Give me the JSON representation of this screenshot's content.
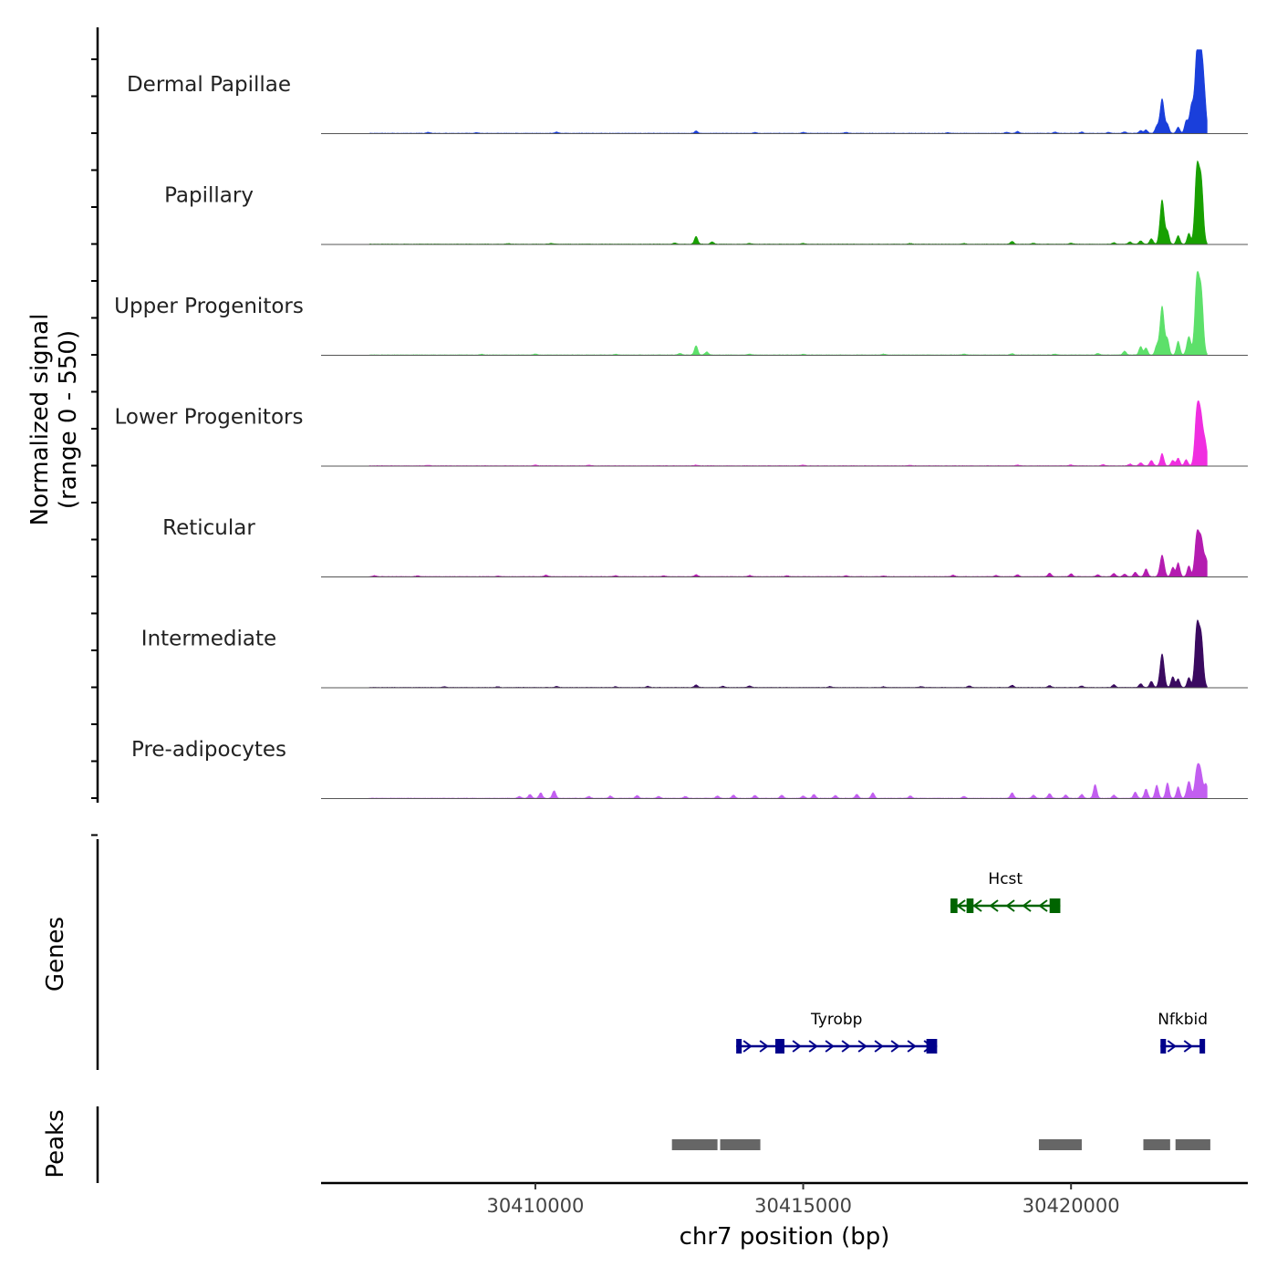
{
  "chart_data": {
    "type": "area",
    "title": "",
    "ylabel_line1": "Normalized signal",
    "ylabel_line2": "(range 0 - 550)",
    "y_range": [
      0,
      550
    ],
    "xlabel": "chr7 position (bp)",
    "x_range": [
      30406000,
      30423300
    ],
    "x_ticks": [
      30410000,
      30415000,
      30420000
    ],
    "x_tick_labels": [
      "30410000",
      "30415000",
      "30420000"
    ],
    "genes_label": "Genes",
    "peaks_label": "Peaks",
    "tracks": [
      {
        "name": "Dermal Papillae",
        "color": "#1a3fdb",
        "peaks": [
          [
            30408000,
            6
          ],
          [
            30408900,
            5
          ],
          [
            30410400,
            8
          ],
          [
            30413000,
            15
          ],
          [
            30414100,
            5
          ],
          [
            30415000,
            6
          ],
          [
            30415800,
            6
          ],
          [
            30417700,
            4
          ],
          [
            30418800,
            7
          ],
          [
            30419000,
            12
          ],
          [
            30419700,
            8
          ],
          [
            30420200,
            8
          ],
          [
            30420700,
            6
          ],
          [
            30421000,
            10
          ],
          [
            30421300,
            18
          ],
          [
            30421400,
            22
          ],
          [
            30421600,
            45
          ],
          [
            30421700,
            225
          ],
          [
            30421800,
            55
          ],
          [
            30422000,
            40
          ],
          [
            30422150,
            80
          ],
          [
            30422250,
            180
          ],
          [
            30422350,
            490
          ],
          [
            30422420,
            410
          ],
          [
            30422480,
            260
          ]
        ]
      },
      {
        "name": "Papillary",
        "color": "#18a000",
        "peaks": [
          [
            30409500,
            4
          ],
          [
            30410300,
            5
          ],
          [
            30412600,
            8
          ],
          [
            30413000,
            50
          ],
          [
            30413300,
            15
          ],
          [
            30414000,
            5
          ],
          [
            30415000,
            5
          ],
          [
            30417000,
            5
          ],
          [
            30418000,
            4
          ],
          [
            30418900,
            18
          ],
          [
            30419300,
            6
          ],
          [
            30420000,
            6
          ],
          [
            30420800,
            10
          ],
          [
            30421100,
            15
          ],
          [
            30421300,
            22
          ],
          [
            30421500,
            35
          ],
          [
            30421700,
            290
          ],
          [
            30421800,
            80
          ],
          [
            30422000,
            55
          ],
          [
            30422200,
            70
          ],
          [
            30422350,
            480
          ],
          [
            30422430,
            400
          ]
        ]
      },
      {
        "name": "Upper Progenitors",
        "color": "#5de06a",
        "peaks": [
          [
            30409000,
            5
          ],
          [
            30410000,
            6
          ],
          [
            30411500,
            5
          ],
          [
            30412700,
            10
          ],
          [
            30413000,
            60
          ],
          [
            30413200,
            20
          ],
          [
            30414000,
            6
          ],
          [
            30415000,
            5
          ],
          [
            30416500,
            6
          ],
          [
            30418000,
            6
          ],
          [
            30418900,
            8
          ],
          [
            30419700,
            6
          ],
          [
            30420500,
            10
          ],
          [
            30421000,
            25
          ],
          [
            30421300,
            55
          ],
          [
            30421400,
            45
          ],
          [
            30421600,
            60
          ],
          [
            30421700,
            320
          ],
          [
            30421800,
            100
          ],
          [
            30422000,
            90
          ],
          [
            30422200,
            120
          ],
          [
            30422350,
            490
          ],
          [
            30422430,
            400
          ]
        ]
      },
      {
        "name": "Lower Progenitors",
        "color": "#f02ee0",
        "peaks": [
          [
            30408000,
            3
          ],
          [
            30410000,
            5
          ],
          [
            30411000,
            4
          ],
          [
            30413000,
            5
          ],
          [
            30415000,
            5
          ],
          [
            30417000,
            4
          ],
          [
            30419000,
            5
          ],
          [
            30420000,
            6
          ],
          [
            30420600,
            8
          ],
          [
            30421100,
            12
          ],
          [
            30421300,
            20
          ],
          [
            30421500,
            35
          ],
          [
            30421700,
            80
          ],
          [
            30421900,
            35
          ],
          [
            30422000,
            50
          ],
          [
            30422150,
            40
          ],
          [
            30422350,
            340
          ],
          [
            30422420,
            290
          ],
          [
            30422500,
            150
          ]
        ]
      },
      {
        "name": "Reticular",
        "color": "#b41cb0",
        "peaks": [
          [
            30407000,
            6
          ],
          [
            30407800,
            5
          ],
          [
            30409300,
            4
          ],
          [
            30410200,
            10
          ],
          [
            30411500,
            6
          ],
          [
            30412400,
            5
          ],
          [
            30413000,
            12
          ],
          [
            30414000,
            8
          ],
          [
            30414700,
            6
          ],
          [
            30415800,
            6
          ],
          [
            30416500,
            5
          ],
          [
            30417800,
            10
          ],
          [
            30418600,
            8
          ],
          [
            30419000,
            12
          ],
          [
            30419600,
            22
          ],
          [
            30420000,
            18
          ],
          [
            30420500,
            12
          ],
          [
            30420800,
            20
          ],
          [
            30421000,
            16
          ],
          [
            30421200,
            28
          ],
          [
            30421400,
            50
          ],
          [
            30421700,
            140
          ],
          [
            30421900,
            60
          ],
          [
            30422000,
            90
          ],
          [
            30422200,
            70
          ],
          [
            30422350,
            270
          ],
          [
            30422430,
            230
          ],
          [
            30422520,
            110
          ]
        ]
      },
      {
        "name": "Intermediate",
        "color": "#3a0a60",
        "peaks": [
          [
            30408300,
            5
          ],
          [
            30409300,
            5
          ],
          [
            30410400,
            6
          ],
          [
            30411500,
            5
          ],
          [
            30412100,
            8
          ],
          [
            30413000,
            16
          ],
          [
            30413500,
            8
          ],
          [
            30414000,
            10
          ],
          [
            30415500,
            6
          ],
          [
            30416500,
            5
          ],
          [
            30417200,
            6
          ],
          [
            30418100,
            10
          ],
          [
            30418900,
            14
          ],
          [
            30419600,
            12
          ],
          [
            30420200,
            10
          ],
          [
            30420800,
            18
          ],
          [
            30421300,
            25
          ],
          [
            30421500,
            40
          ],
          [
            30421700,
            220
          ],
          [
            30421900,
            70
          ],
          [
            30422000,
            55
          ],
          [
            30422200,
            65
          ],
          [
            30422350,
            390
          ],
          [
            30422430,
            320
          ]
        ]
      },
      {
        "name": "Pre-adipocytes",
        "color": "#c25ef0",
        "peaks": [
          [
            30409700,
            12
          ],
          [
            30409900,
            25
          ],
          [
            30410100,
            35
          ],
          [
            30410350,
            50
          ],
          [
            30411000,
            12
          ],
          [
            30411400,
            15
          ],
          [
            30411900,
            18
          ],
          [
            30412300,
            12
          ],
          [
            30412800,
            12
          ],
          [
            30413400,
            15
          ],
          [
            30413700,
            20
          ],
          [
            30414100,
            18
          ],
          [
            30414600,
            20
          ],
          [
            30415000,
            15
          ],
          [
            30415200,
            25
          ],
          [
            30415600,
            18
          ],
          [
            30416000,
            25
          ],
          [
            30416300,
            35
          ],
          [
            30417000,
            15
          ],
          [
            30418000,
            12
          ],
          [
            30418900,
            35
          ],
          [
            30419300,
            20
          ],
          [
            30419600,
            30
          ],
          [
            30419900,
            20
          ],
          [
            30420200,
            25
          ],
          [
            30420450,
            90
          ],
          [
            30420800,
            20
          ],
          [
            30421200,
            40
          ],
          [
            30421400,
            60
          ],
          [
            30421600,
            85
          ],
          [
            30421800,
            100
          ],
          [
            30422000,
            75
          ],
          [
            30422200,
            110
          ],
          [
            30422350,
            180
          ],
          [
            30422420,
            160
          ],
          [
            30422520,
            90
          ]
        ]
      }
    ],
    "genes": [
      {
        "name": "Hcst",
        "strand": "-",
        "color": "#006400",
        "start": 30417750,
        "end": 30419800,
        "row": 0,
        "exons": [
          [
            30417750,
            30417880
          ],
          [
            30418050,
            30418180
          ],
          [
            30419600,
            30419800
          ]
        ]
      },
      {
        "name": "Tyrobp",
        "strand": "+",
        "color": "#00008b",
        "start": 30413750,
        "end": 30417500,
        "row": 1,
        "exons": [
          [
            30413750,
            30413850
          ],
          [
            30414480,
            30414650
          ],
          [
            30417300,
            30417500
          ]
        ]
      },
      {
        "name": "Nfkbid",
        "strand": "+",
        "color": "#00008b",
        "start": 30421670,
        "end": 30422500,
        "row": 1,
        "exons": [
          [
            30421670,
            30421770
          ],
          [
            30422400,
            30422500
          ]
        ]
      }
    ],
    "peak_regions": [
      [
        30412550,
        30413400
      ],
      [
        30413450,
        30414200
      ],
      [
        30419400,
        30420200
      ],
      [
        30421350,
        30421850
      ],
      [
        30421950,
        30422600
      ]
    ]
  }
}
